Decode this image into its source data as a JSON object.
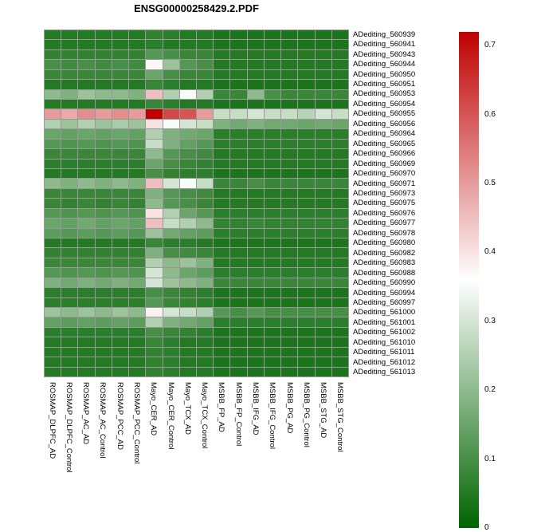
{
  "title": "ENSG00000258429.2.PDF",
  "chart_data": {
    "type": "heatmap",
    "title": "ENSG00000258429.2.PDF",
    "grid_border_color": "#999999",
    "columns": [
      "ROSMAP_DLPFC_AD",
      "ROSMAP_DLPFC_Control",
      "ROSMAP_AC_AD",
      "ROSMAP_AC_Control",
      "ROSMAP_PCC_AD",
      "ROSMAP_PCC_Control",
      "Mayo_CER_AD",
      "Mayo_CER_Control",
      "Mayo_TCX_AD",
      "Mayo_TCX_Control",
      "MSBB_FP_AD",
      "MSBB_FP_Control",
      "MSBB_IFG_AD",
      "MSBB_IFG_Control",
      "MSBB_PG_AD",
      "MSBB_PG_Control",
      "MSBB_STG_AD",
      "MSBB_STG_Control"
    ],
    "rows": [
      "ADediting_560939",
      "ADediting_560941",
      "ADediting_560943",
      "ADediting_560944",
      "ADediting_560950",
      "ADediting_560951",
      "ADediting_560953",
      "ADediting_560954",
      "ADediting_560955",
      "ADediting_560956",
      "ADediting_560964",
      "ADediting_560965",
      "ADediting_560966",
      "ADediting_560969",
      "ADediting_560970",
      "ADediting_560971",
      "ADediting_560973",
      "ADediting_560975",
      "ADediting_560976",
      "ADediting_560977",
      "ADediting_560978",
      "ADediting_560980",
      "ADediting_560982",
      "ADediting_560983",
      "ADediting_560988",
      "ADediting_560990",
      "ADediting_560994",
      "ADediting_560997",
      "ADediting_561000",
      "ADediting_561001",
      "ADediting_561002",
      "ADediting_561010",
      "ADediting_561011",
      "ADediting_561012",
      "ADediting_561013"
    ],
    "values": [
      [
        0.05,
        0.05,
        0.05,
        0.05,
        0.05,
        0.05,
        0.07,
        0.06,
        0.05,
        0.05,
        0.04,
        0.04,
        0.04,
        0.04,
        0.04,
        0.04,
        0.04,
        0.04
      ],
      [
        0.05,
        0.05,
        0.05,
        0.05,
        0.05,
        0.05,
        0.06,
        0.05,
        0.05,
        0.05,
        0.04,
        0.04,
        0.04,
        0.04,
        0.04,
        0.04,
        0.04,
        0.04
      ],
      [
        0.07,
        0.07,
        0.07,
        0.07,
        0.07,
        0.07,
        0.12,
        0.1,
        0.08,
        0.08,
        0.05,
        0.05,
        0.05,
        0.05,
        0.05,
        0.05,
        0.05,
        0.05
      ],
      [
        0.1,
        0.09,
        0.1,
        0.09,
        0.1,
        0.09,
        0.37,
        0.22,
        0.12,
        0.1,
        0.05,
        0.05,
        0.05,
        0.05,
        0.05,
        0.05,
        0.05,
        0.05
      ],
      [
        0.08,
        0.08,
        0.08,
        0.08,
        0.08,
        0.08,
        0.15,
        0.1,
        0.08,
        0.08,
        0.05,
        0.05,
        0.05,
        0.05,
        0.05,
        0.05,
        0.05,
        0.05
      ],
      [
        0.05,
        0.05,
        0.05,
        0.05,
        0.05,
        0.05,
        0.08,
        0.06,
        0.05,
        0.05,
        0.04,
        0.04,
        0.04,
        0.04,
        0.04,
        0.04,
        0.04,
        0.04
      ],
      [
        0.2,
        0.18,
        0.22,
        0.2,
        0.2,
        0.18,
        0.45,
        0.25,
        0.35,
        0.25,
        0.08,
        0.08,
        0.2,
        0.1,
        0.08,
        0.08,
        0.08,
        0.08
      ],
      [
        0.05,
        0.05,
        0.05,
        0.05,
        0.05,
        0.05,
        0.08,
        0.06,
        0.05,
        0.05,
        0.04,
        0.04,
        0.04,
        0.04,
        0.04,
        0.04,
        0.04,
        0.04
      ],
      [
        0.5,
        0.48,
        0.52,
        0.5,
        0.52,
        0.5,
        0.72,
        0.62,
        0.6,
        0.5,
        0.28,
        0.28,
        0.3,
        0.28,
        0.28,
        0.26,
        0.3,
        0.28
      ],
      [
        0.25,
        0.22,
        0.25,
        0.22,
        0.24,
        0.22,
        0.4,
        0.35,
        0.3,
        0.28,
        0.18,
        0.16,
        0.18,
        0.16,
        0.16,
        0.15,
        0.16,
        0.15
      ],
      [
        0.15,
        0.14,
        0.15,
        0.14,
        0.15,
        0.14,
        0.25,
        0.18,
        0.16,
        0.15,
        0.06,
        0.06,
        0.06,
        0.06,
        0.06,
        0.06,
        0.06,
        0.06
      ],
      [
        0.12,
        0.11,
        0.12,
        0.11,
        0.12,
        0.11,
        0.28,
        0.18,
        0.14,
        0.12,
        0.06,
        0.06,
        0.06,
        0.06,
        0.06,
        0.06,
        0.06,
        0.06
      ],
      [
        0.08,
        0.08,
        0.08,
        0.08,
        0.08,
        0.08,
        0.2,
        0.12,
        0.1,
        0.09,
        0.05,
        0.05,
        0.05,
        0.05,
        0.05,
        0.05,
        0.05,
        0.05
      ],
      [
        0.06,
        0.06,
        0.06,
        0.06,
        0.06,
        0.06,
        0.15,
        0.1,
        0.08,
        0.07,
        0.05,
        0.05,
        0.05,
        0.05,
        0.05,
        0.05,
        0.05,
        0.05
      ],
      [
        0.05,
        0.05,
        0.05,
        0.05,
        0.05,
        0.05,
        0.1,
        0.07,
        0.06,
        0.06,
        0.04,
        0.04,
        0.04,
        0.04,
        0.04,
        0.04,
        0.04,
        0.04
      ],
      [
        0.2,
        0.18,
        0.2,
        0.18,
        0.2,
        0.18,
        0.45,
        0.3,
        0.35,
        0.28,
        0.08,
        0.08,
        0.1,
        0.08,
        0.08,
        0.08,
        0.08,
        0.08
      ],
      [
        0.08,
        0.08,
        0.08,
        0.08,
        0.08,
        0.08,
        0.18,
        0.12,
        0.1,
        0.09,
        0.05,
        0.05,
        0.05,
        0.05,
        0.05,
        0.05,
        0.05,
        0.05
      ],
      [
        0.08,
        0.07,
        0.08,
        0.07,
        0.08,
        0.07,
        0.2,
        0.12,
        0.1,
        0.08,
        0.05,
        0.05,
        0.05,
        0.05,
        0.05,
        0.05,
        0.05,
        0.05
      ],
      [
        0.12,
        0.11,
        0.12,
        0.11,
        0.12,
        0.11,
        0.4,
        0.25,
        0.15,
        0.12,
        0.06,
        0.06,
        0.06,
        0.06,
        0.06,
        0.06,
        0.06,
        0.06
      ],
      [
        0.15,
        0.14,
        0.16,
        0.14,
        0.15,
        0.14,
        0.45,
        0.28,
        0.25,
        0.2,
        0.07,
        0.07,
        0.08,
        0.07,
        0.07,
        0.07,
        0.07,
        0.07
      ],
      [
        0.13,
        0.12,
        0.13,
        0.12,
        0.13,
        0.12,
        0.22,
        0.16,
        0.14,
        0.13,
        0.06,
        0.06,
        0.06,
        0.06,
        0.06,
        0.06,
        0.06,
        0.06
      ],
      [
        0.05,
        0.05,
        0.05,
        0.05,
        0.05,
        0.05,
        0.08,
        0.06,
        0.06,
        0.05,
        0.04,
        0.04,
        0.04,
        0.04,
        0.04,
        0.04,
        0.04,
        0.04
      ],
      [
        0.07,
        0.07,
        0.07,
        0.07,
        0.07,
        0.07,
        0.18,
        0.1,
        0.09,
        0.08,
        0.05,
        0.05,
        0.05,
        0.05,
        0.05,
        0.05,
        0.05,
        0.05
      ],
      [
        0.08,
        0.08,
        0.08,
        0.08,
        0.08,
        0.08,
        0.25,
        0.2,
        0.22,
        0.18,
        0.05,
        0.05,
        0.05,
        0.05,
        0.05,
        0.05,
        0.05,
        0.05
      ],
      [
        0.12,
        0.11,
        0.12,
        0.11,
        0.12,
        0.11,
        0.3,
        0.2,
        0.15,
        0.13,
        0.06,
        0.06,
        0.06,
        0.06,
        0.06,
        0.06,
        0.06,
        0.06
      ],
      [
        0.18,
        0.16,
        0.18,
        0.16,
        0.18,
        0.16,
        0.3,
        0.22,
        0.2,
        0.18,
        0.08,
        0.08,
        0.08,
        0.08,
        0.08,
        0.08,
        0.08,
        0.08
      ],
      [
        0.06,
        0.06,
        0.06,
        0.06,
        0.06,
        0.06,
        0.1,
        0.08,
        0.07,
        0.06,
        0.04,
        0.04,
        0.04,
        0.04,
        0.04,
        0.04,
        0.04,
        0.04
      ],
      [
        0.06,
        0.06,
        0.06,
        0.06,
        0.06,
        0.06,
        0.12,
        0.08,
        0.07,
        0.06,
        0.04,
        0.04,
        0.04,
        0.04,
        0.04,
        0.04,
        0.04,
        0.04
      ],
      [
        0.22,
        0.2,
        0.22,
        0.2,
        0.22,
        0.2,
        0.38,
        0.3,
        0.28,
        0.25,
        0.12,
        0.1,
        0.12,
        0.1,
        0.1,
        0.1,
        0.1,
        0.1
      ],
      [
        0.14,
        0.13,
        0.14,
        0.13,
        0.14,
        0.13,
        0.25,
        0.18,
        0.16,
        0.14,
        0.06,
        0.06,
        0.06,
        0.06,
        0.06,
        0.06,
        0.06,
        0.06
      ],
      [
        0.06,
        0.06,
        0.06,
        0.06,
        0.06,
        0.06,
        0.1,
        0.08,
        0.07,
        0.06,
        0.04,
        0.04,
        0.04,
        0.04,
        0.04,
        0.04,
        0.04,
        0.04
      ],
      [
        0.05,
        0.05,
        0.05,
        0.05,
        0.05,
        0.05,
        0.08,
        0.06,
        0.05,
        0.05,
        0.04,
        0.04,
        0.04,
        0.04,
        0.04,
        0.04,
        0.04,
        0.04
      ],
      [
        0.05,
        0.05,
        0.05,
        0.05,
        0.05,
        0.05,
        0.07,
        0.06,
        0.05,
        0.05,
        0.04,
        0.04,
        0.04,
        0.04,
        0.04,
        0.04,
        0.04,
        0.04
      ],
      [
        0.05,
        0.05,
        0.05,
        0.05,
        0.05,
        0.05,
        0.07,
        0.06,
        0.05,
        0.05,
        0.04,
        0.04,
        0.04,
        0.04,
        0.04,
        0.04,
        0.04,
        0.04
      ],
      [
        0.05,
        0.05,
        0.05,
        0.05,
        0.05,
        0.05,
        0.07,
        0.06,
        0.05,
        0.05,
        0.04,
        0.04,
        0.04,
        0.04,
        0.04,
        0.04,
        0.04,
        0.04
      ]
    ],
    "colorscale": {
      "min": 0,
      "max": 0.72,
      "min_color": "#006400",
      "mid_color": "#ffffff",
      "max_color": "#c00000"
    },
    "legend_ticks": [
      {
        "label": "0.7",
        "value": 0.7
      },
      {
        "label": "0.6",
        "value": 0.6
      },
      {
        "label": "0.5",
        "value": 0.5
      },
      {
        "label": "0.4",
        "value": 0.4
      },
      {
        "label": "0.3",
        "value": 0.3
      },
      {
        "label": "0.2",
        "value": 0.2
      },
      {
        "label": "0.1",
        "value": 0.1
      },
      {
        "label": "0",
        "value": 0
      }
    ]
  }
}
